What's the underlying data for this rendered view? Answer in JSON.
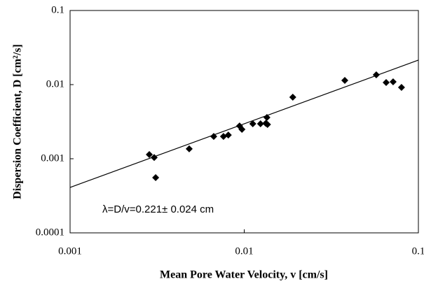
{
  "chart_data": {
    "type": "scatter",
    "xlabel": "Mean Pore Water Velocity, v [cm/s]",
    "ylabel": "Dispersion Coefficient, D [cm²/s]",
    "annotation": "λ=D/v=0.221± 0.024 cm",
    "x": [
      0.00285,
      0.00304,
      0.0031,
      0.00483,
      0.00668,
      0.0076,
      0.0081,
      0.0094,
      0.0097,
      0.0112,
      0.0124,
      0.0133,
      0.0135,
      0.0136,
      0.019,
      0.0378,
      0.0573,
      0.0653,
      0.0716,
      0.08
    ],
    "values": [
      0.00114,
      0.00104,
      0.000556,
      0.00136,
      0.002,
      0.002,
      0.00209,
      0.00277,
      0.00249,
      0.00296,
      0.00296,
      0.003,
      0.0036,
      0.0029,
      0.00676,
      0.0114,
      0.01355,
      0.01067,
      0.0109,
      0.00917
    ],
    "color": "#000000",
    "fit_line": {
      "x": [
        0.001,
        0.1
      ],
      "values": [
        0.00041,
        0.0214
      ],
      "color": "#000000"
    },
    "log_x": true,
    "log_y": true,
    "xlim": [
      0.001,
      0.1
    ],
    "xticks": [
      0.001,
      0.01,
      0.1
    ],
    "ylim": [
      0.0001,
      0.1
    ],
    "yticks": [
      0.0001,
      0.001,
      0.01,
      0.1
    ]
  }
}
